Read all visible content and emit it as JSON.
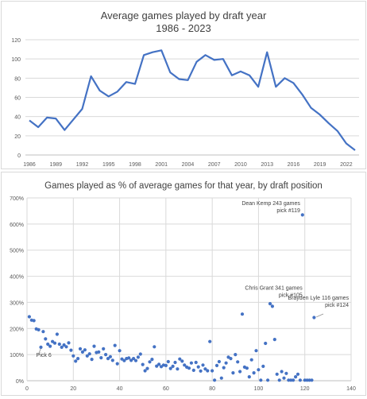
{
  "chart_data": [
    {
      "type": "line",
      "title": "Average games played by draft year",
      "subtitle": "1986 - 2023",
      "xlabel": "",
      "ylabel": "",
      "ylim": [
        0,
        120
      ],
      "yticks": [
        "0",
        "20",
        "40",
        "60",
        "80",
        "100",
        "120"
      ],
      "xticks": [
        "1986",
        "1989",
        "1992",
        "1995",
        "1998",
        "2001",
        "2004",
        "2007",
        "2010",
        "2013",
        "2016",
        "2019",
        "2022"
      ],
      "grid": true,
      "color": "#4472c4",
      "x": [
        1986,
        1987,
        1988,
        1989,
        1990,
        1991,
        1992,
        1993,
        1994,
        1995,
        1996,
        1997,
        1998,
        1999,
        2000,
        2001,
        2002,
        2003,
        2004,
        2005,
        2006,
        2007,
        2008,
        2009,
        2010,
        2011,
        2012,
        2013,
        2014,
        2015,
        2016,
        2017,
        2018,
        2019,
        2020,
        2021,
        2022,
        2023
      ],
      "values": [
        36,
        29,
        39,
        38,
        26,
        37,
        48,
        82,
        67,
        61,
        66,
        76,
        74,
        104,
        107,
        109,
        86,
        79,
        78,
        97,
        104,
        99,
        100,
        83,
        87,
        83,
        71,
        107,
        71,
        80,
        75,
        63,
        49,
        42,
        33,
        25,
        12,
        5
      ]
    },
    {
      "type": "scatter",
      "title": "Games played as % of average games for that year, by draft position",
      "xlim": [
        0,
        140
      ],
      "ylim": [
        0,
        700
      ],
      "xticks": [
        "0",
        "20",
        "40",
        "60",
        "80",
        "100",
        "120",
        "140"
      ],
      "yticks": [
        "0%",
        "100%",
        "200%",
        "300%",
        "400%",
        "500%",
        "600%",
        "700%"
      ],
      "grid": true,
      "color": "#4472c4",
      "annotations": [
        {
          "id": "pick6",
          "lines": [
            "Pick 6"
          ]
        },
        {
          "id": "kemp",
          "lines": [
            "Dean Kemp 243 games",
            "pick #119"
          ]
        },
        {
          "id": "grant",
          "lines": [
            "Chris Grant 341 games",
            "pick #105"
          ]
        },
        {
          "id": "lyle",
          "lines": [
            "Brayden Lyle 116 games",
            "pick #124"
          ]
        }
      ],
      "points": [
        [
          1,
          245
        ],
        [
          2,
          232
        ],
        [
          3,
          230
        ],
        [
          4,
          198
        ],
        [
          5,
          195
        ],
        [
          6,
          128
        ],
        [
          7,
          188
        ],
        [
          8,
          160
        ],
        [
          9,
          140
        ],
        [
          10,
          132
        ],
        [
          11,
          150
        ],
        [
          12,
          144
        ],
        [
          13,
          178
        ],
        [
          14,
          140
        ],
        [
          15,
          128
        ],
        [
          16,
          137
        ],
        [
          17,
          130
        ],
        [
          18,
          145
        ],
        [
          19,
          117
        ],
        [
          20,
          95
        ],
        [
          21,
          75
        ],
        [
          22,
          85
        ],
        [
          23,
          122
        ],
        [
          24,
          110
        ],
        [
          25,
          118
        ],
        [
          26,
          95
        ],
        [
          27,
          103
        ],
        [
          28,
          82
        ],
        [
          29,
          132
        ],
        [
          30,
          108
        ],
        [
          31,
          110
        ],
        [
          32,
          88
        ],
        [
          33,
          122
        ],
        [
          34,
          100
        ],
        [
          35,
          85
        ],
        [
          36,
          92
        ],
        [
          37,
          78
        ],
        [
          38,
          135
        ],
        [
          39,
          65
        ],
        [
          40,
          115
        ],
        [
          41,
          83
        ],
        [
          42,
          77
        ],
        [
          43,
          85
        ],
        [
          44,
          87
        ],
        [
          45,
          78
        ],
        [
          46,
          85
        ],
        [
          47,
          77
        ],
        [
          48,
          90
        ],
        [
          49,
          102
        ],
        [
          50,
          62
        ],
        [
          51,
          38
        ],
        [
          52,
          47
        ],
        [
          53,
          72
        ],
        [
          54,
          82
        ],
        [
          55,
          130
        ],
        [
          56,
          56
        ],
        [
          57,
          63
        ],
        [
          58,
          54
        ],
        [
          59,
          60
        ],
        [
          60,
          58
        ],
        [
          61,
          73
        ],
        [
          62,
          47
        ],
        [
          63,
          55
        ],
        [
          64,
          70
        ],
        [
          65,
          45
        ],
        [
          66,
          83
        ],
        [
          67,
          75
        ],
        [
          68,
          60
        ],
        [
          69,
          52
        ],
        [
          70,
          48
        ],
        [
          71,
          68
        ],
        [
          72,
          40
        ],
        [
          73,
          70
        ],
        [
          74,
          53
        ],
        [
          75,
          37
        ],
        [
          76,
          60
        ],
        [
          77,
          45
        ],
        [
          78,
          38
        ],
        [
          79,
          150
        ],
        [
          80,
          38
        ],
        [
          81,
          2
        ],
        [
          82,
          58
        ],
        [
          83,
          73
        ],
        [
          84,
          10
        ],
        [
          85,
          50
        ],
        [
          86,
          68
        ],
        [
          87,
          90
        ],
        [
          88,
          85
        ],
        [
          89,
          30
        ],
        [
          90,
          100
        ],
        [
          91,
          72
        ],
        [
          92,
          35
        ],
        [
          93,
          255
        ],
        [
          94,
          52
        ],
        [
          95,
          48
        ],
        [
          96,
          15
        ],
        [
          97,
          80
        ],
        [
          98,
          30
        ],
        [
          99,
          115
        ],
        [
          100,
          42
        ],
        [
          101,
          2
        ],
        [
          102,
          55
        ],
        [
          103,
          143
        ],
        [
          104,
          2
        ],
        [
          105,
          295
        ],
        [
          106,
          285
        ],
        [
          107,
          158
        ],
        [
          108,
          25
        ],
        [
          109,
          2
        ],
        [
          110,
          35
        ],
        [
          111,
          10
        ],
        [
          112,
          28
        ],
        [
          113,
          2
        ],
        [
          114,
          2
        ],
        [
          115,
          2
        ],
        [
          116,
          15
        ],
        [
          117,
          25
        ],
        [
          118,
          2
        ],
        [
          119,
          635
        ],
        [
          120,
          2
        ],
        [
          121,
          2
        ],
        [
          122,
          2
        ],
        [
          123,
          2
        ],
        [
          124,
          242
        ]
      ]
    }
  ]
}
